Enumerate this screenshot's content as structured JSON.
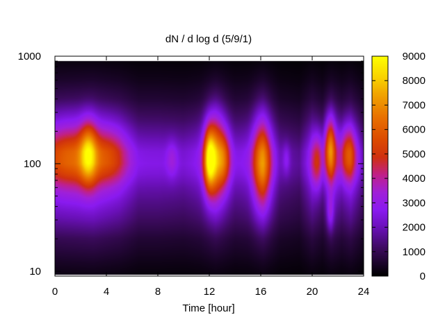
{
  "chart_data": {
    "type": "heatmap",
    "title": "dN / d log d (5/9/1)",
    "xlabel": "Time [hour]",
    "ylabel": "",
    "xlim": [
      0,
      24
    ],
    "ylim": [
      9,
      1000
    ],
    "y_scale": "log",
    "x_ticks": [
      0,
      4,
      8,
      12,
      16,
      20,
      24
    ],
    "x_tick_labels": [
      "0",
      "4",
      "8",
      "12",
      "16",
      "20",
      "24"
    ],
    "y_ticks": [
      10,
      100,
      1000
    ],
    "y_tick_labels": [
      "10",
      "100",
      "1000"
    ],
    "colorbar": {
      "range": [
        0,
        9000
      ],
      "ticks": [
        0,
        1000,
        2000,
        3000,
        4000,
        5000,
        6000,
        7000,
        8000,
        9000
      ],
      "tick_labels": [
        "0",
        "1000",
        "2000",
        "3000",
        "4000",
        "5000",
        "6000",
        "7000",
        "8000",
        "9000"
      ],
      "colormap": "gnuplot-pm3d",
      "stops": [
        [
          0.0,
          "#000000"
        ],
        [
          0.12,
          "#3a0a5a"
        ],
        [
          0.22,
          "#6a10b8"
        ],
        [
          0.3,
          "#8a1af0"
        ],
        [
          0.38,
          "#a020d8"
        ],
        [
          0.46,
          "#c0208a"
        ],
        [
          0.54,
          "#cf3010"
        ],
        [
          0.62,
          "#dc4a00"
        ],
        [
          0.72,
          "#e87000"
        ],
        [
          0.82,
          "#f0a000"
        ],
        [
          0.9,
          "#f8d000"
        ],
        [
          1.0,
          "#ffff00"
        ]
      ]
    },
    "data_extent": {
      "x": [
        0,
        24
      ],
      "y": [
        9.3,
        900
      ]
    },
    "background_profile": [
      {
        "y": 9.3,
        "value": 200
      },
      {
        "y": 12,
        "value": 400
      },
      {
        "y": 20,
        "value": 900
      },
      {
        "y": 30,
        "value": 1600
      },
      {
        "y": 45,
        "value": 2200
      },
      {
        "y": 60,
        "value": 2700
      },
      {
        "y": 80,
        "value": 3400
      },
      {
        "y": 100,
        "value": 3700
      },
      {
        "y": 130,
        "value": 3500
      },
      {
        "y": 180,
        "value": 2600
      },
      {
        "y": 250,
        "value": 1800
      },
      {
        "y": 400,
        "value": 900
      },
      {
        "y": 600,
        "value": 450
      },
      {
        "y": 900,
        "value": 150
      }
    ],
    "time_modulation": [
      {
        "x": 0,
        "factor": 1.1
      },
      {
        "x": 3,
        "factor": 1.2
      },
      {
        "x": 5,
        "factor": 1.0
      },
      {
        "x": 6.5,
        "factor": 0.7
      },
      {
        "x": 8,
        "factor": 0.7
      },
      {
        "x": 10,
        "factor": 0.65
      },
      {
        "x": 11.3,
        "factor": 0.75
      },
      {
        "x": 12.5,
        "factor": 1.0
      },
      {
        "x": 14,
        "factor": 0.7
      },
      {
        "x": 15,
        "factor": 0.75
      },
      {
        "x": 16.2,
        "factor": 1.0
      },
      {
        "x": 17.5,
        "factor": 0.55
      },
      {
        "x": 19,
        "factor": 0.45
      },
      {
        "x": 20,
        "factor": 0.85
      },
      {
        "x": 20.8,
        "factor": 0.6
      },
      {
        "x": 21.5,
        "factor": 1.0
      },
      {
        "x": 22.3,
        "factor": 0.75
      },
      {
        "x": 23,
        "factor": 0.95
      },
      {
        "x": 24,
        "factor": 0.5
      }
    ],
    "hotspots": [
      {
        "x": 1.2,
        "y": 120,
        "sx": 1.5,
        "sy": 0.22,
        "value": 2100
      },
      {
        "x": 2.6,
        "y": 125,
        "sx": 0.45,
        "sy": 0.2,
        "value": 3300
      },
      {
        "x": 4.2,
        "y": 120,
        "sx": 1.0,
        "sy": 0.2,
        "value": 1600
      },
      {
        "x": 9.1,
        "y": 110,
        "sx": 0.3,
        "sy": 0.12,
        "value": 900
      },
      {
        "x": 12.0,
        "y": 110,
        "sx": 0.3,
        "sy": 0.2,
        "value": 4300
      },
      {
        "x": 12.5,
        "y": 115,
        "sx": 0.55,
        "sy": 0.28,
        "value": 3800
      },
      {
        "x": 13.2,
        "y": 110,
        "sx": 0.35,
        "sy": 0.18,
        "value": 1700
      },
      {
        "x": 16.1,
        "y": 100,
        "sx": 0.5,
        "sy": 0.3,
        "value": 3700
      },
      {
        "x": 18.0,
        "y": 110,
        "sx": 0.2,
        "sy": 0.1,
        "value": 900
      },
      {
        "x": 20.4,
        "y": 105,
        "sx": 0.3,
        "sy": 0.18,
        "value": 2300
      },
      {
        "x": 21.4,
        "y": 140,
        "sx": 0.3,
        "sy": 0.2,
        "value": 3900
      },
      {
        "x": 21.4,
        "y": 35,
        "sx": 0.2,
        "sy": 0.12,
        "value": 1400
      },
      {
        "x": 22.8,
        "y": 125,
        "sx": 0.45,
        "sy": 0.18,
        "value": 2800
      }
    ]
  }
}
